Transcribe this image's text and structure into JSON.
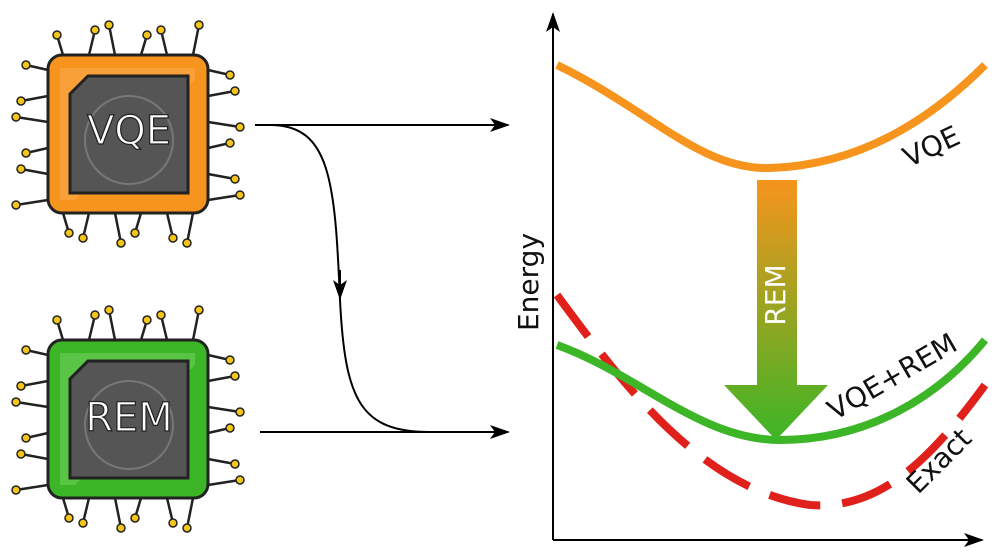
{
  "chips": [
    {
      "label": "VQE"
    },
    {
      "label": "REM"
    }
  ],
  "plot": {
    "y_label": "Energy",
    "arrow_label": "REM",
    "curves": [
      {
        "label": "VQE"
      },
      {
        "label": "VQE+REM"
      },
      {
        "label": "Exact"
      }
    ]
  }
}
